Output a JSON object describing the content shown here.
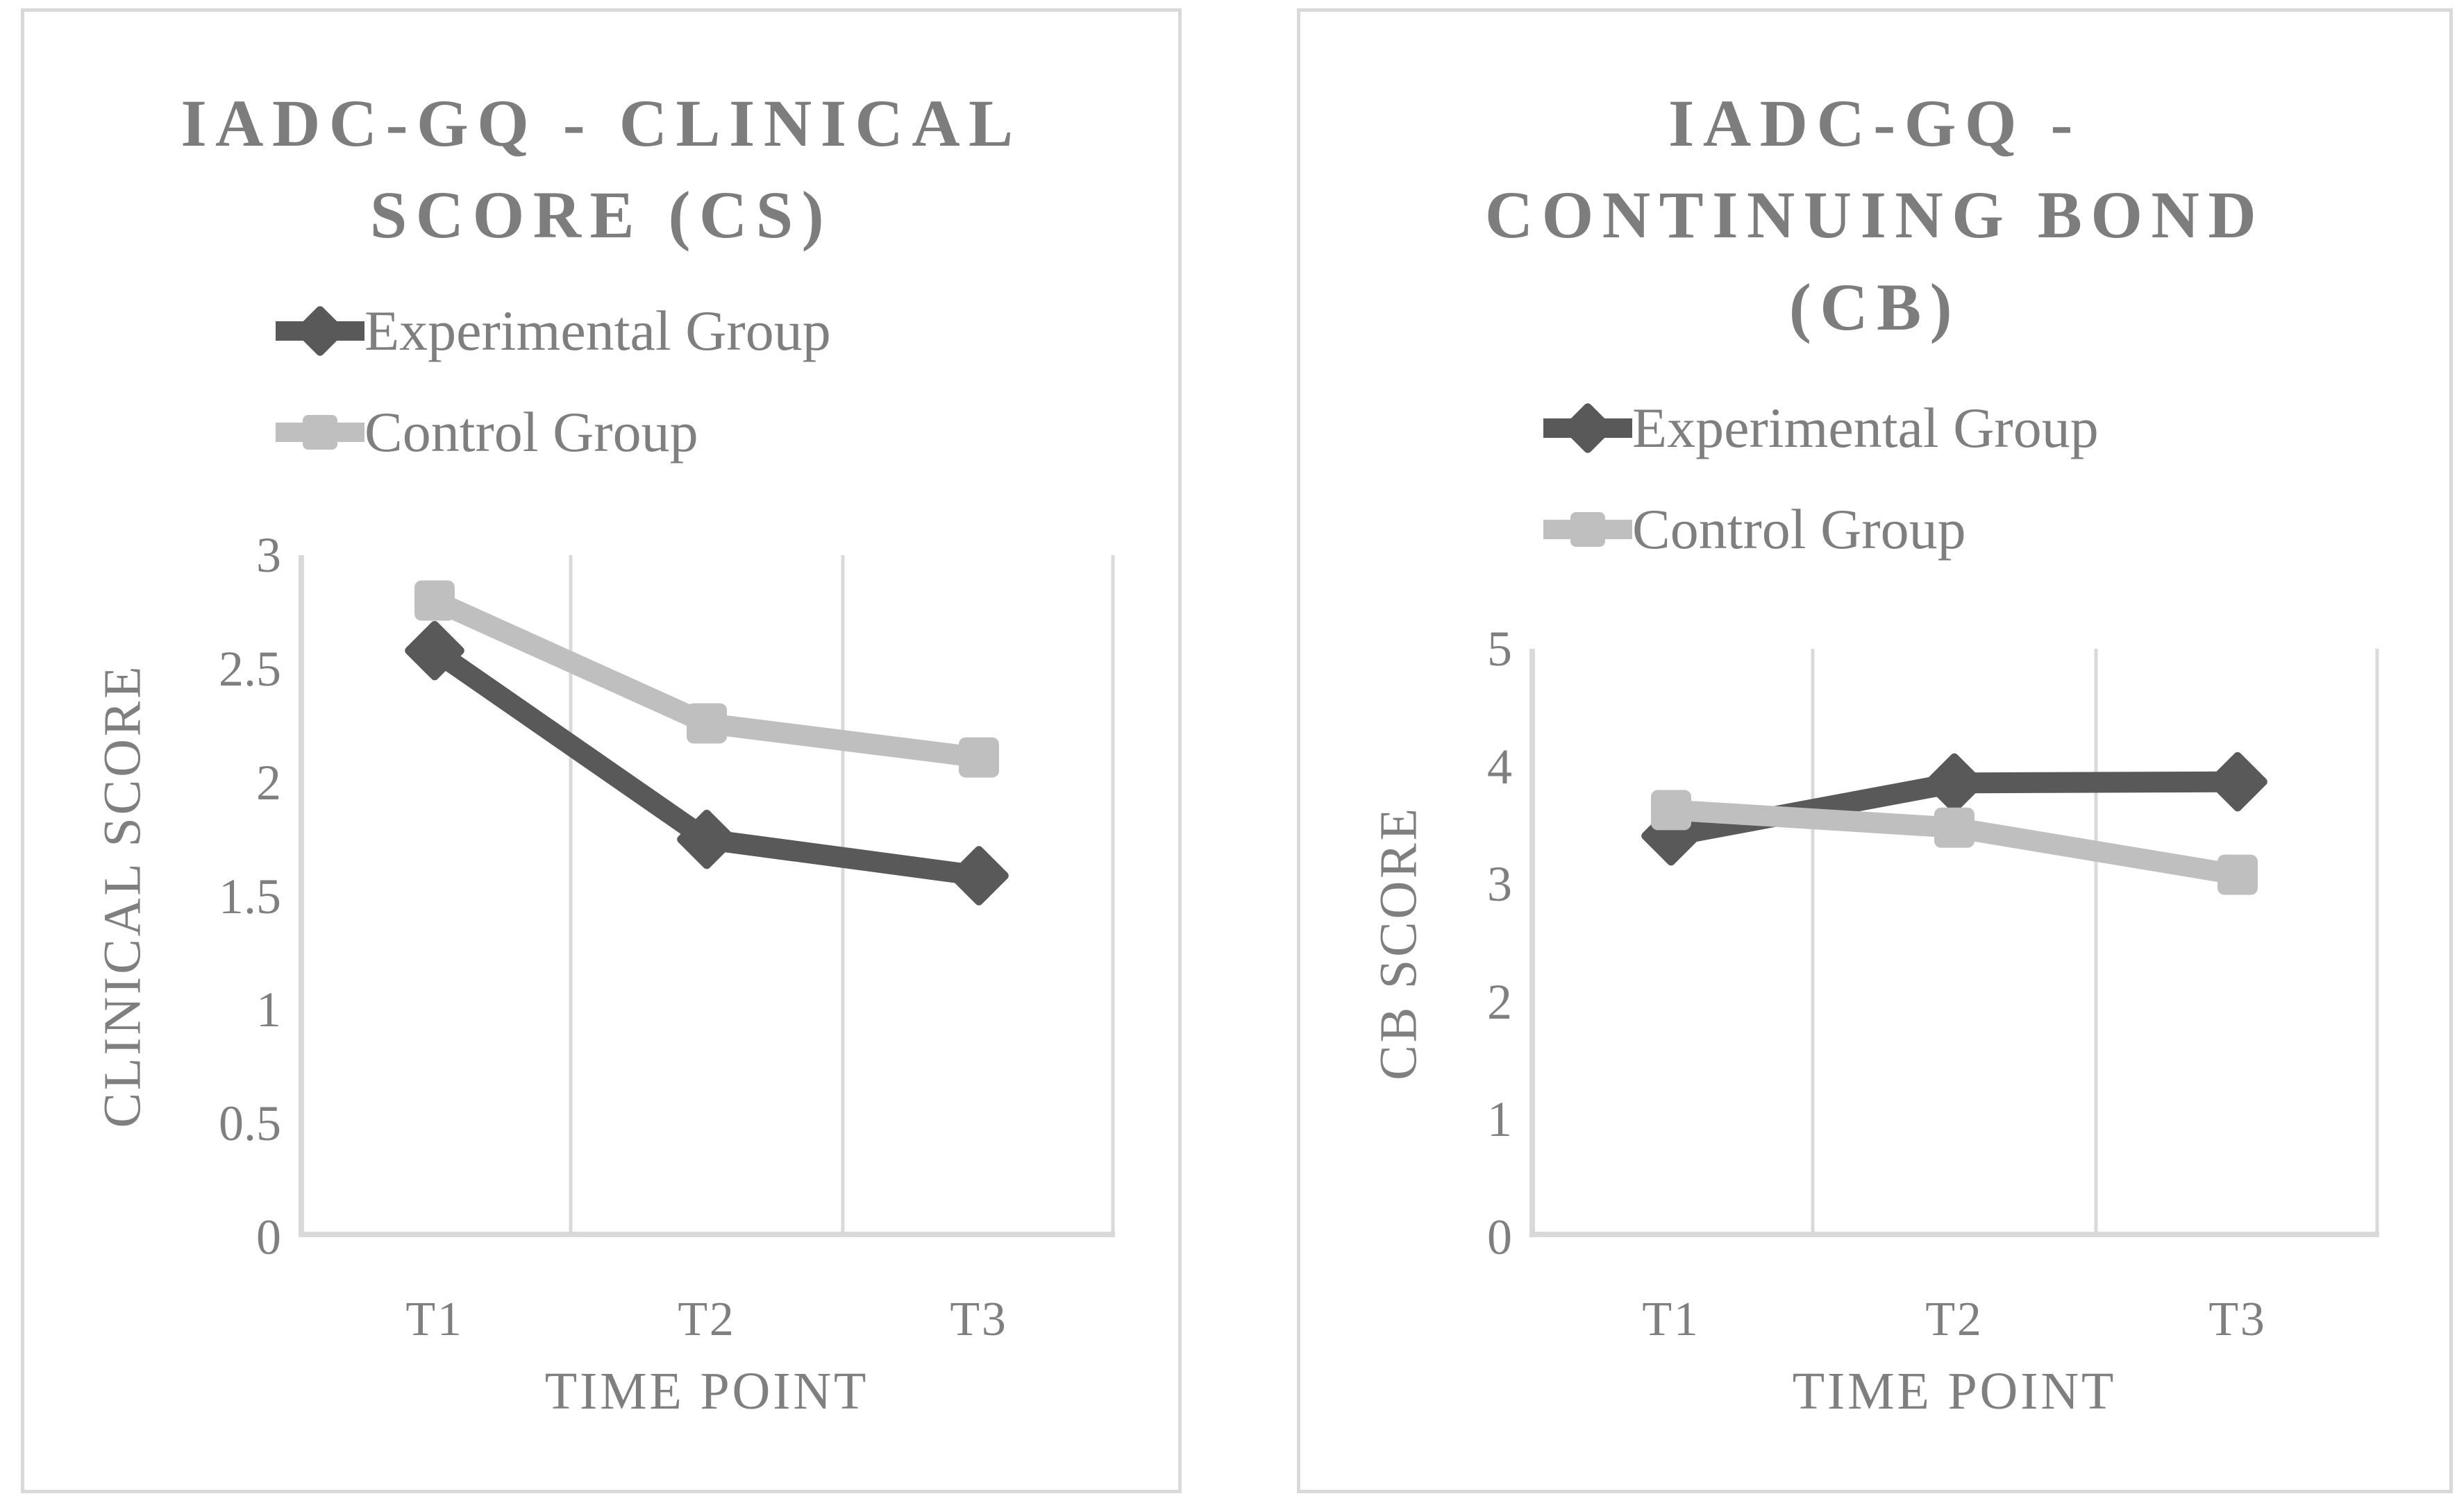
{
  "figure": {
    "background": "#ffffff",
    "panel_border_color": "#d9d9d9",
    "grid_color": "#d9d9d9",
    "text_color": "#7f7f7f",
    "title_color": "#7d7d7d"
  },
  "chart_data": [
    {
      "type": "line",
      "title": "IADC-GQ - CLINICAL SCORE (CS)",
      "title_lines": [
        "IADC-GQ - CLINICAL",
        "SCORE (CS)"
      ],
      "xlabel": "TIME POINT",
      "ylabel": "CLINICAL SCORE",
      "categories": [
        "T1",
        "T2",
        "T3"
      ],
      "ylim": [
        0,
        3
      ],
      "y_ticks": [
        "3",
        "2.5",
        "2",
        "1.5",
        "1",
        "0.5",
        "0"
      ],
      "grid": "vertical-only",
      "legend_position": "top-left-stacked",
      "series": [
        {
          "name": "Experimental Group",
          "marker": "diamond",
          "color": "#595959",
          "values": [
            2.58,
            1.75,
            1.59
          ]
        },
        {
          "name": "Control Group",
          "marker": "square",
          "color": "#bfbfbf",
          "values": [
            2.8,
            2.26,
            2.11
          ]
        }
      ]
    },
    {
      "type": "line",
      "title": "IADC-GQ - CONTINUING BOND (CB)",
      "title_lines": [
        "IADC-GQ -",
        "CONTINUING BOND",
        "(CB)"
      ],
      "xlabel": "TIME POINT",
      "ylabel": "CB SCORE",
      "categories": [
        "T1",
        "T2",
        "T3"
      ],
      "ylim": [
        0,
        5
      ],
      "y_ticks": [
        "5",
        "4",
        "3",
        "2",
        "1",
        "0"
      ],
      "grid": "vertical-only",
      "legend_position": "top-left-stacked",
      "series": [
        {
          "name": "Experimental Group",
          "marker": "diamond",
          "color": "#595959",
          "values": [
            3.41,
            3.86,
            3.87
          ]
        },
        {
          "name": "Control Group",
          "marker": "square",
          "color": "#bfbfbf",
          "values": [
            3.63,
            3.48,
            3.08
          ]
        }
      ]
    }
  ]
}
